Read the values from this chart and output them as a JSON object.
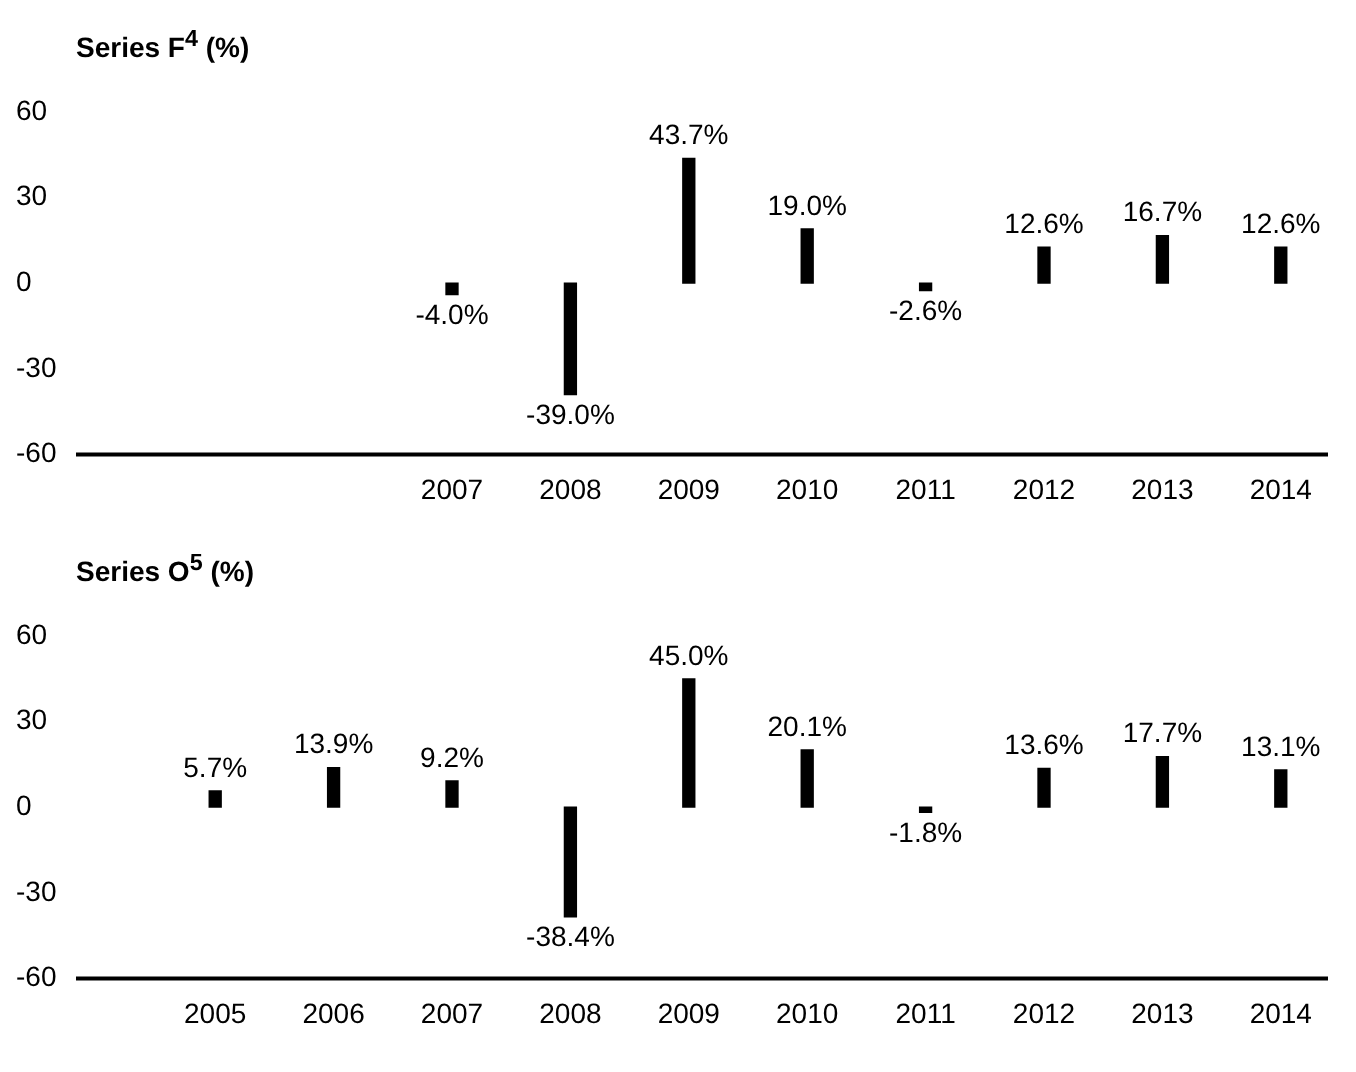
{
  "chart_data": [
    {
      "type": "bar",
      "title": "Series F$^{4}$ (%)",
      "categories": [
        null,
        null,
        "2007",
        "2008",
        "2009",
        "2010",
        "2011",
        "2012",
        "2013",
        "2014"
      ],
      "series": [
        {
          "color": "#000000",
          "values": [
            null,
            null,
            -4.0,
            -39.0,
            43.7,
            19.0,
            -2.6,
            12.6,
            16.7,
            12.6
          ],
          "value_labels": [
            null,
            null,
            "-4.0%",
            "-39.0%",
            "43.7%",
            "19.0%",
            "-2.6%",
            "12.6%",
            "16.7%",
            "12.6%"
          ]
        }
      ],
      "ylim": [
        -60,
        60
      ],
      "yticks": [
        -60,
        -30,
        0,
        30,
        60
      ],
      "grid": false,
      "legend": false
    },
    {
      "type": "bar",
      "title": "Series O$^{5}$ (%)",
      "categories": [
        "2005",
        "2006",
        "2007",
        "2008",
        "2009",
        "2010",
        "2011",
        "2012",
        "2013",
        "2014"
      ],
      "series": [
        {
          "color": "#000000",
          "values": [
            5.7,
            13.9,
            9.2,
            -38.4,
            45.0,
            20.1,
            -1.8,
            13.6,
            17.7,
            13.1
          ],
          "value_labels": [
            "5.7%",
            "13.9%",
            "9.2%",
            "-38.4%",
            "45.0%",
            "20.1%",
            "-1.8%",
            "13.6%",
            "17.7%",
            "13.1%"
          ]
        }
      ],
      "ylim": [
        -60,
        60
      ],
      "yticks": [
        -60,
        -30,
        0,
        30,
        60
      ],
      "grid": false,
      "legend": false
    }
  ]
}
